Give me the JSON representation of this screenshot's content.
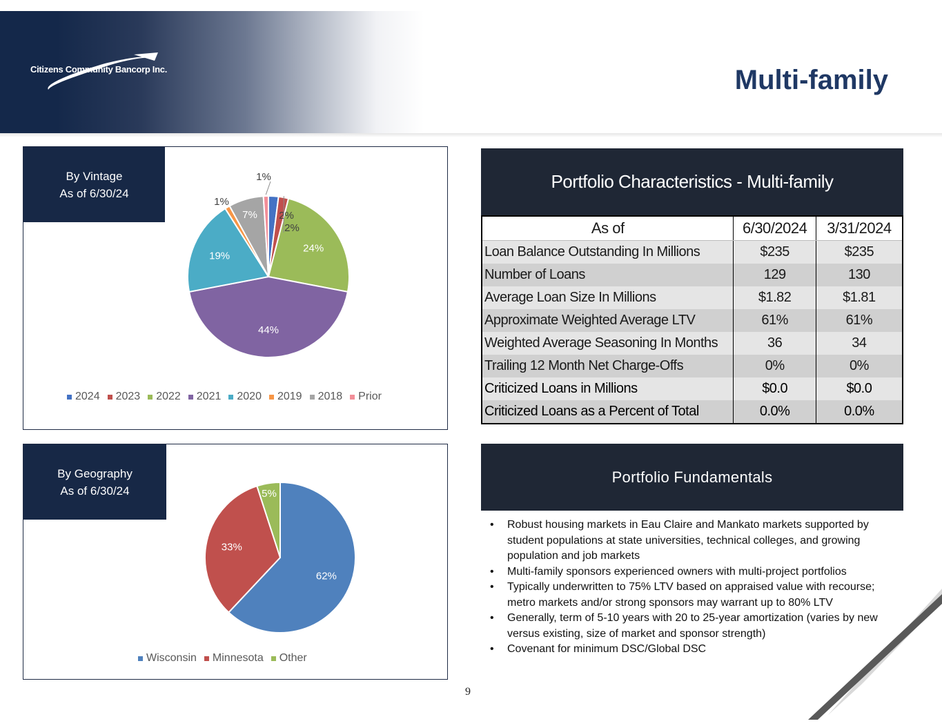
{
  "header": {
    "logo_text": "Citizens Community Bancorp Inc.",
    "title": "Multi-family"
  },
  "colors": {
    "navy": "#172846",
    "title_blue": "#1f3864"
  },
  "charts": {
    "vintage": {
      "tag_line1": "By Vintage",
      "tag_line2": "As of 6/30/24"
    },
    "geography": {
      "tag_line1": "By Geography",
      "tag_line2": "As of 6/30/24"
    }
  },
  "chart_data": [
    {
      "type": "pie",
      "title": "By Vintage As of 6/30/24",
      "categories": [
        "2024",
        "2023",
        "2022",
        "2021",
        "2020",
        "2019",
        "2018",
        "Prior"
      ],
      "values": [
        2,
        2,
        24,
        44,
        19,
        1,
        7,
        1
      ],
      "labels": [
        "2%",
        "2%",
        "24%",
        "44%",
        "19%",
        "1%",
        "7%",
        "1%"
      ],
      "colors": [
        "#4472c4",
        "#c0504d",
        "#9bbb59",
        "#8064a2",
        "#4bacc6",
        "#f79646",
        "#a5a5a5",
        "#f28e98"
      ],
      "legend": "bottom"
    },
    {
      "type": "pie",
      "title": "By Geography As of 6/30/24",
      "categories": [
        "Wisconsin",
        "Minnesota",
        "Other"
      ],
      "values": [
        62,
        33,
        5
      ],
      "labels": [
        "62%",
        "33%",
        "5%"
      ],
      "colors": [
        "#4f81bd",
        "#c0504d",
        "#9bbb59"
      ],
      "legend": "bottom"
    }
  ],
  "table": {
    "title": "Portfolio Characteristics - Multi-family",
    "headers": [
      "As of",
      "6/30/2024",
      "3/31/2024"
    ],
    "rows": [
      [
        "Loan Balance Outstanding In Millions",
        "$235",
        "$235"
      ],
      [
        "Number of Loans",
        "129",
        "130"
      ],
      [
        "Average Loan Size In Millions",
        "$1.82",
        "$1.81"
      ],
      [
        "Approximate Weighted Average LTV",
        "61%",
        "61%"
      ],
      [
        "Weighted Average Seasoning In Months",
        "36",
        "34"
      ],
      [
        "Trailing 12 Month Net Charge-Offs",
        "0%",
        "0%"
      ],
      [
        "Criticized Loans in Millions",
        "$0.0",
        "$0.0"
      ],
      [
        "Criticized Loans as a Percent of Total",
        "0.0%",
        "0.0%"
      ]
    ]
  },
  "fundamentals": {
    "title": "Portfolio Fundamentals",
    "bullets": [
      "Robust housing markets in Eau Claire and Mankato markets supported by student populations at state universities, technical colleges, and growing population and job markets",
      "Multi-family sponsors experienced owners with multi-project portfolios",
      "Typically underwritten to 75% LTV based on appraised value with recourse; metro markets and/or strong sponsors may warrant up to 80% LTV",
      "Generally, term of 5-10 years with 20 to 25-year amortization (varies by new versus existing, size of market and sponsor strength)",
      "Covenant for minimum DSC/Global DSC"
    ]
  },
  "page_number": "9"
}
